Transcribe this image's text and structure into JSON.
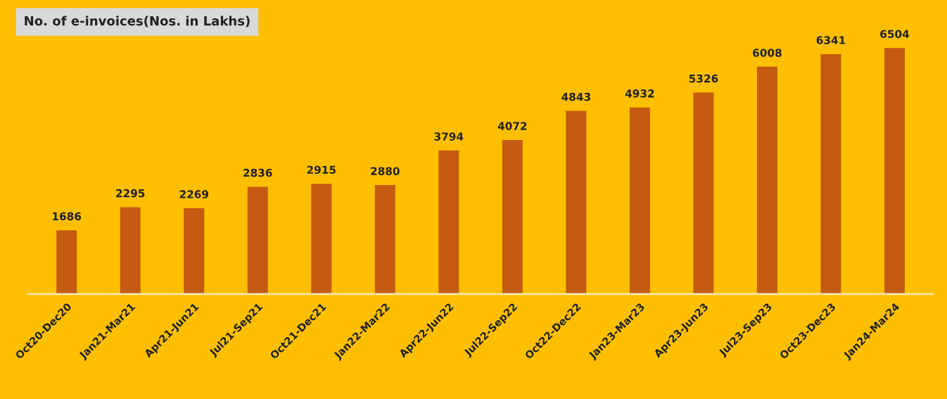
{
  "chart_data": {
    "type": "bar",
    "title": "No. of e-invoices(Nos. in Lakhs)",
    "categories": [
      "Oct20-Dec20",
      "Jan21-Mar21",
      "Apr21-Jun21",
      "Jul21-Sep21",
      "Oct21-Dec21",
      "Jan22-Mar22",
      "Apr22-Jun22",
      "Jul22-Sep22",
      "Oct22-Dec22",
      "Jan23-Mar23",
      "Apr23-Jun23",
      "Jul23-Sep23",
      "Oct23-Dec23",
      "Jan24-Mar24"
    ],
    "values": [
      1686,
      2295,
      2269,
      2836,
      2915,
      2880,
      3794,
      4072,
      4843,
      4932,
      5326,
      6008,
      6341,
      6504
    ],
    "color": "#c55a11",
    "data_labels": true,
    "grid": false,
    "legend": false,
    "tick_labels": "x"
  }
}
